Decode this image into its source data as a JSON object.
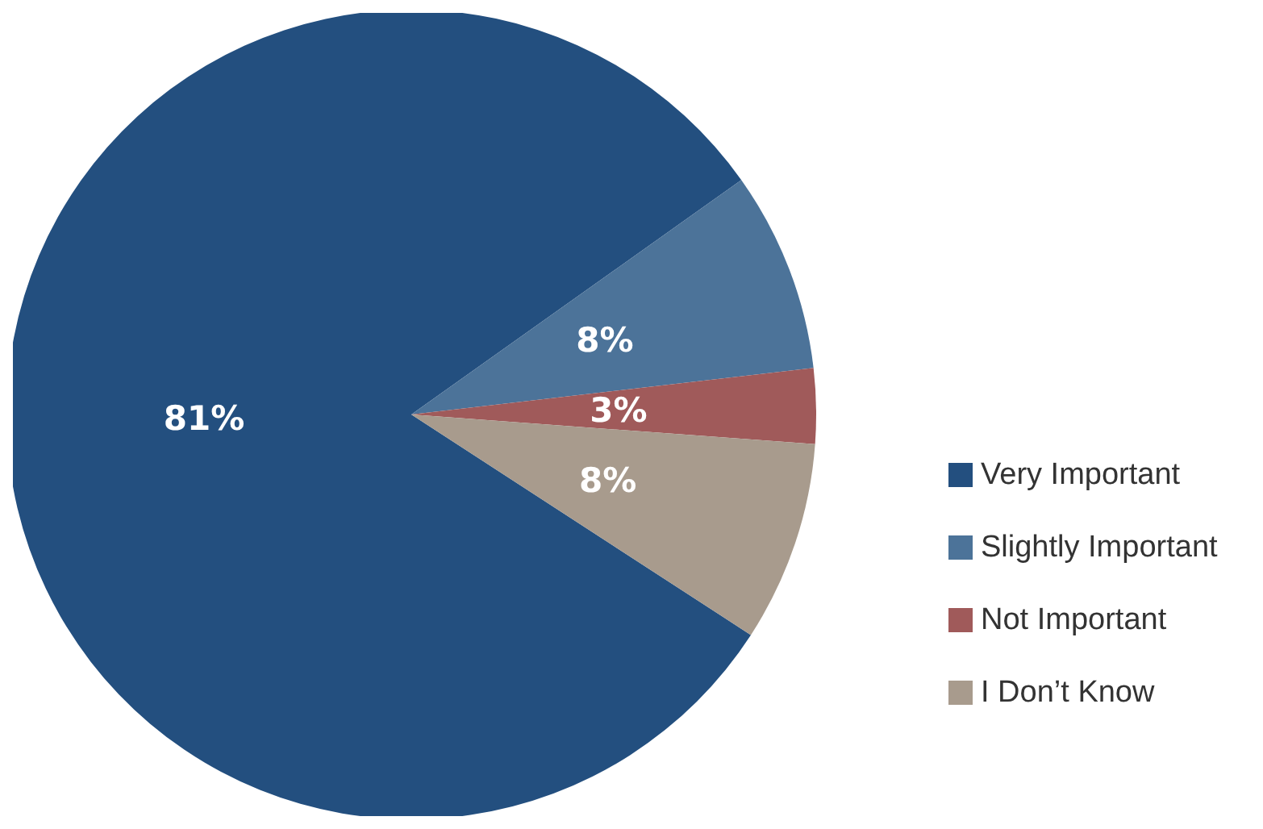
{
  "chart_data": {
    "type": "pie",
    "categories": [
      "Very Important",
      "Slightly Important",
      "Not Important",
      "I Don’t Know"
    ],
    "values": [
      81,
      8,
      3,
      8
    ],
    "colors": [
      "#234f7f",
      "#4c7399",
      "#a05a5a",
      "#a89b8d"
    ],
    "value_labels": [
      "81%",
      "8%",
      "3%",
      "8%"
    ],
    "legend": "right"
  }
}
